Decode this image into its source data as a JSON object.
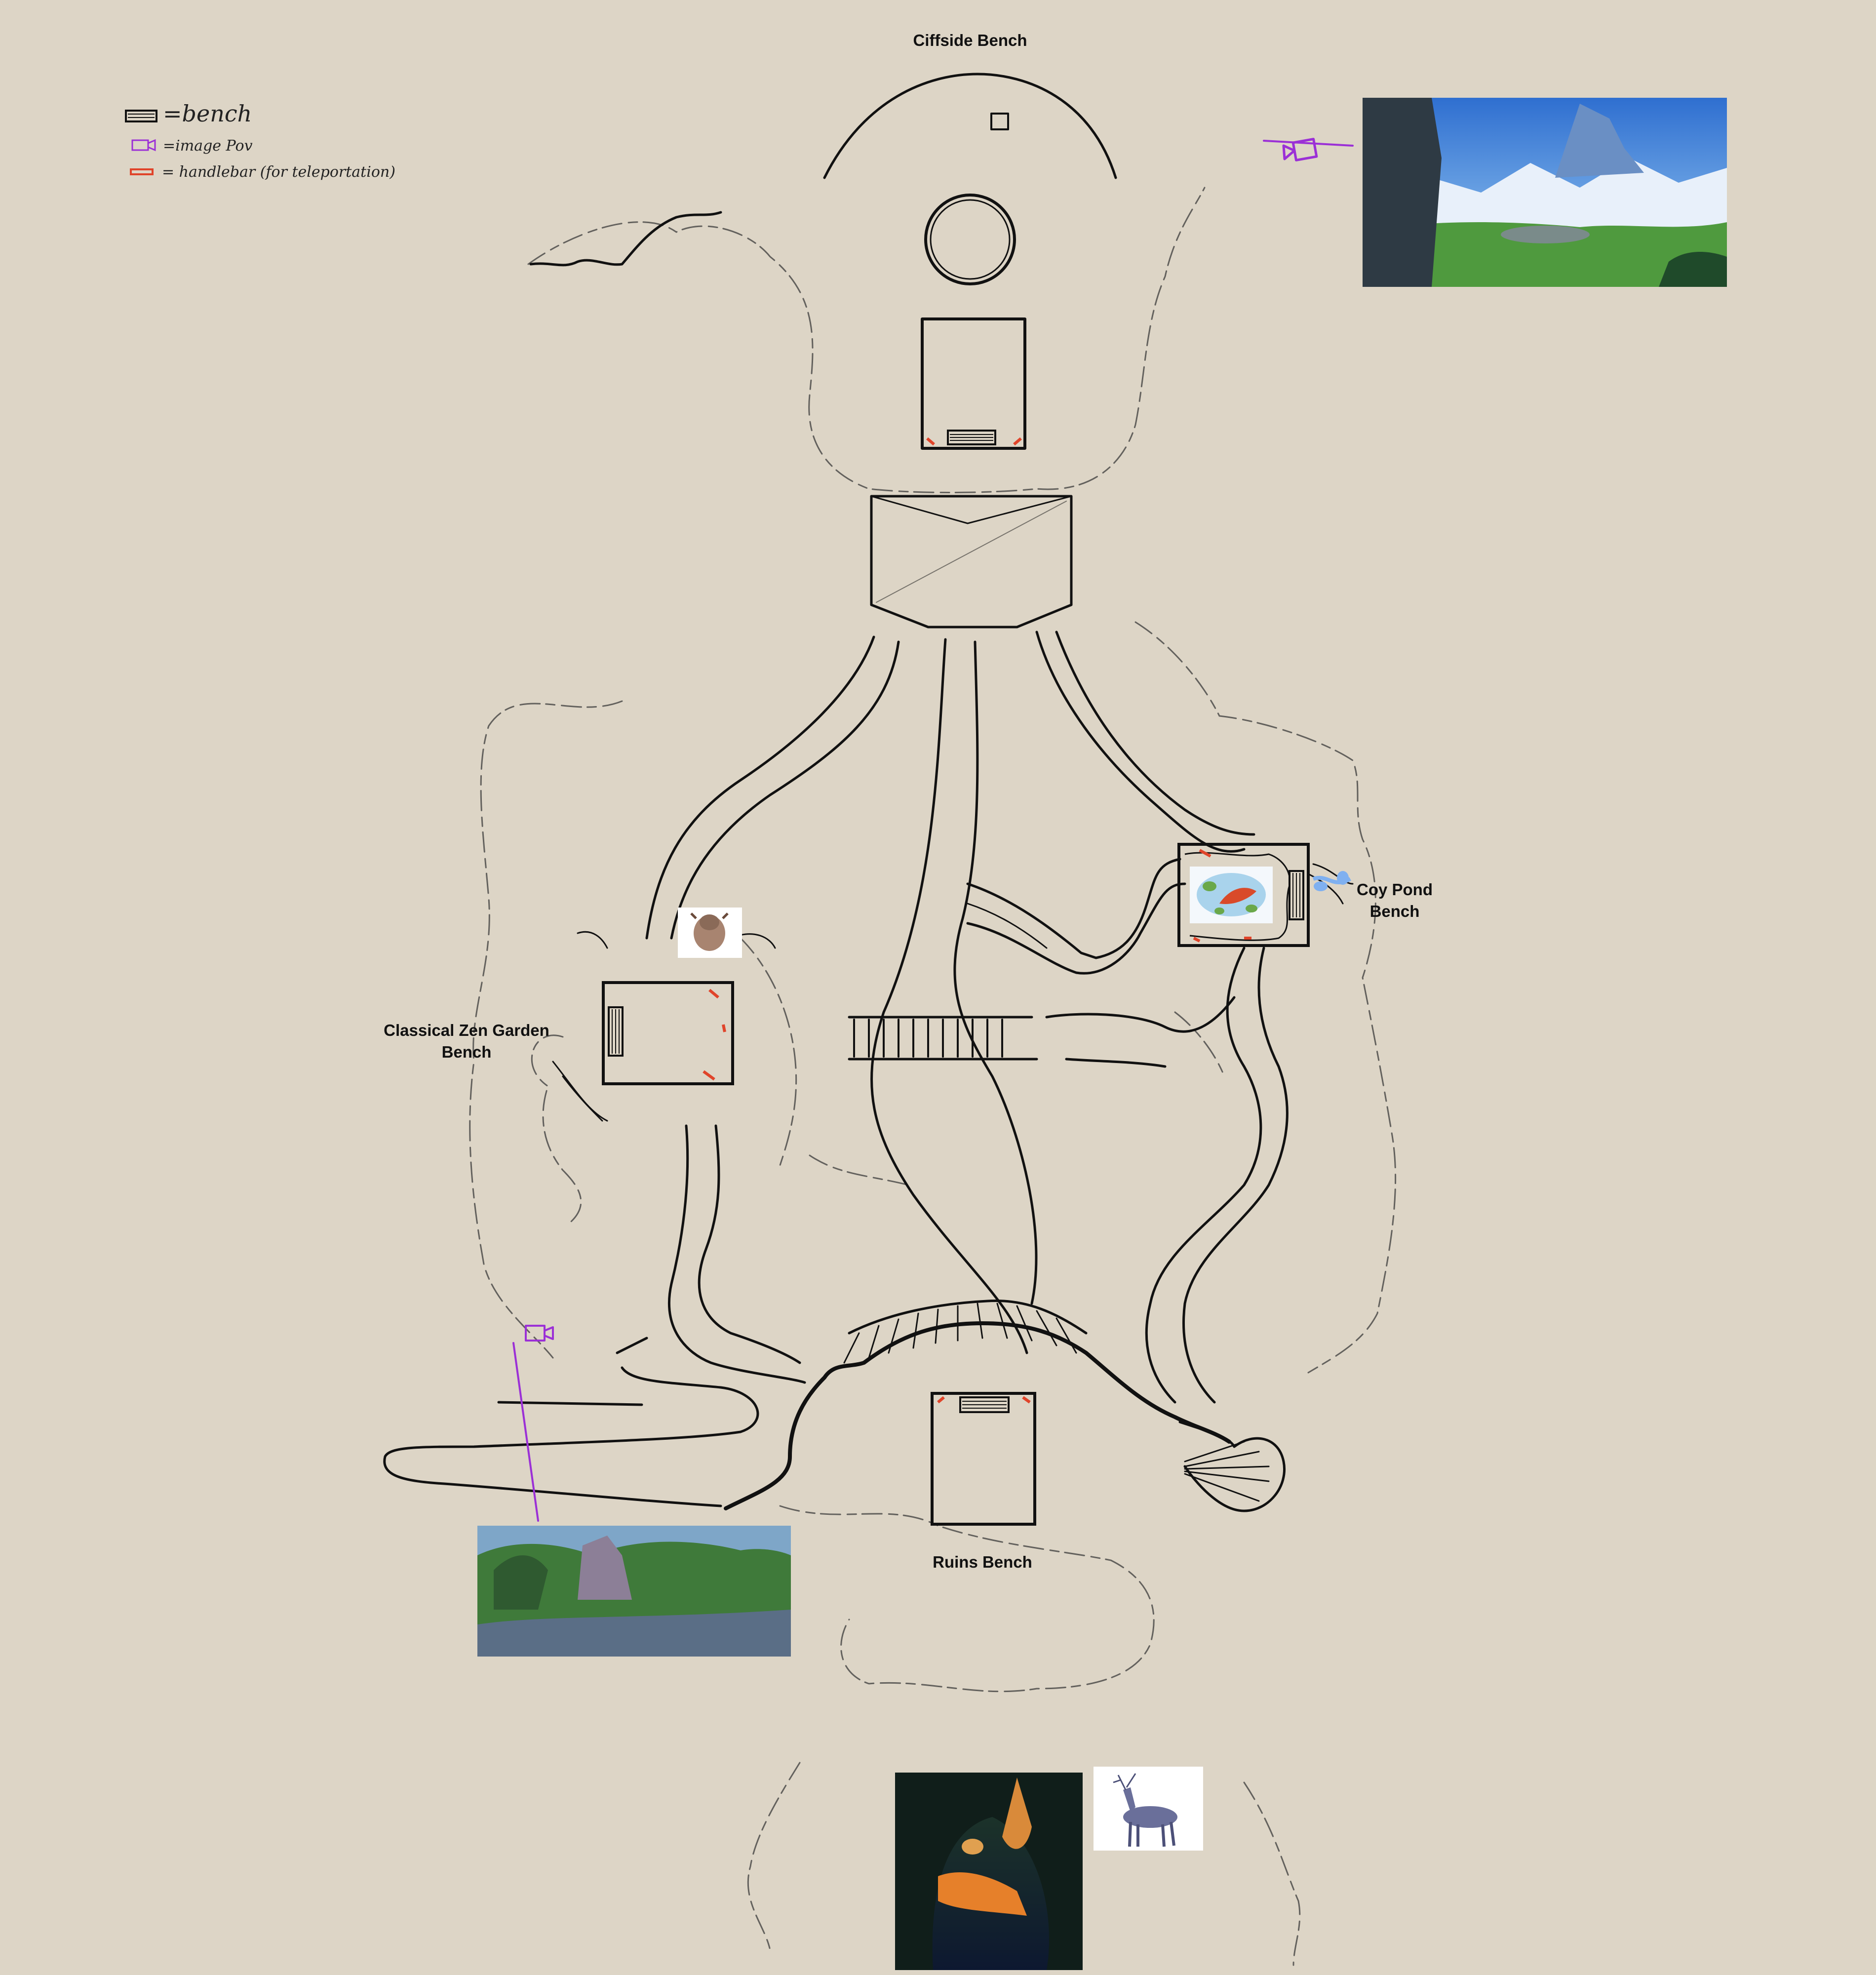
{
  "labels": {
    "cliffside": "Ciffside Bench",
    "coy_line1": "Coy Pond",
    "coy_line2": "Bench",
    "zen_line1": "Classical Zen Garden",
    "zen_line2": "Bench",
    "ruins": "Ruins Bench"
  },
  "legend": {
    "bench": "=bench",
    "image_pov": "=image Pov",
    "handlebar": "= handlebar (for teleportation)"
  },
  "icons": {
    "bench": "bench-icon",
    "image_pov": "camera-icon",
    "handlebar": "handlebar-icon"
  },
  "colors": {
    "background": "#ddd5c6",
    "ink": "#111111",
    "handlebar": "#e0442a",
    "camera": "#9b30d6",
    "water": "#7fb0f0"
  }
}
